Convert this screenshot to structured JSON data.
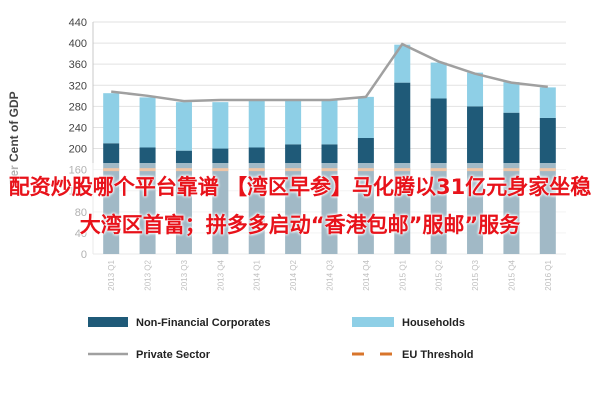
{
  "chart_data": {
    "type": "bar",
    "categories": [
      "2013 Q1",
      "2013 Q2",
      "2013 Q3",
      "2013 Q4",
      "2014 Q1",
      "2014 Q2",
      "2014 Q3",
      "2014 Q4",
      "2015 Q1",
      "2015 Q2",
      "2015 Q3",
      "2015 Q4",
      "2016 Q1"
    ],
    "series": [
      {
        "name": "Non-Financial Corporates",
        "type": "bar",
        "color": "#1f5a78",
        "values": [
          210,
          202,
          196,
          200,
          202,
          208,
          208,
          220,
          325,
          295,
          280,
          268,
          258
        ]
      },
      {
        "name": "Households",
        "type": "bar",
        "color": "#8ecfe6",
        "values": [
          95,
          95,
          92,
          88,
          90,
          86,
          86,
          78,
          72,
          68,
          64,
          58,
          58
        ]
      },
      {
        "name": "Private Sector",
        "type": "line",
        "color": "#a0a0a0",
        "values": [
          308,
          300,
          290,
          292,
          292,
          292,
          292,
          298,
          398,
          365,
          342,
          325,
          317
        ]
      },
      {
        "name": "EU Threshold",
        "type": "line",
        "color": "#d8752b",
        "style": "dashed",
        "values": [
          160,
          160,
          160,
          160,
          160,
          160,
          160,
          160,
          160,
          160,
          160,
          160,
          160
        ]
      }
    ],
    "ylabel": "Per Cent of GDP",
    "xlabel": "",
    "ylim": [
      0,
      440
    ],
    "yticks": [
      0,
      40,
      80,
      120,
      160,
      200,
      240,
      280,
      320,
      360,
      400,
      440
    ],
    "grid": true,
    "legend_position": "bottom"
  },
  "overlay": {
    "text": "配资炒股哪个平台靠谱 【湾区早参】马化腾以31亿元身家坐稳大湾区首富；拼多多启动“香港包邮”服邮”服务",
    "color": "#e8121a"
  }
}
